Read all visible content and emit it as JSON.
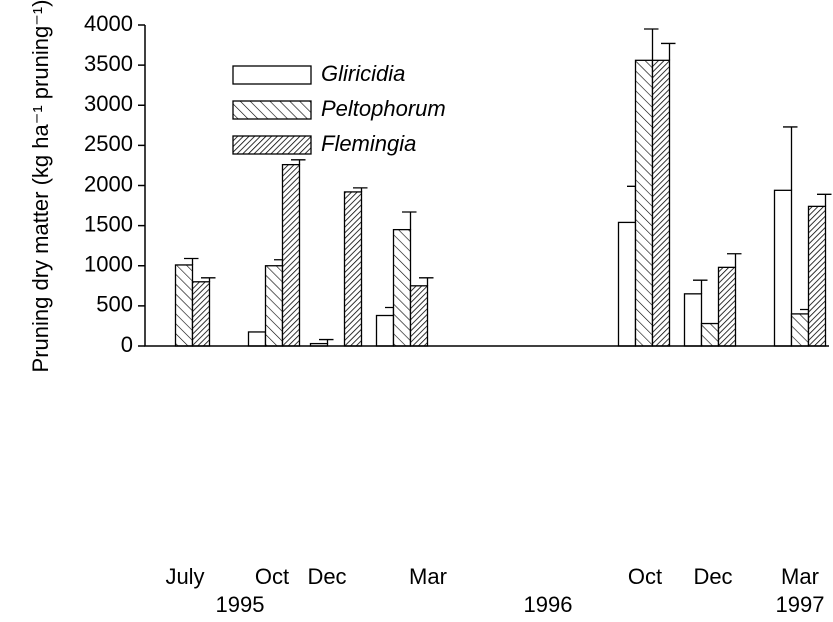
{
  "chart_data": {
    "type": "bar",
    "y_label": "Pruning dry matter (kg ha⁻¹ pruning⁻¹)",
    "categories": [
      "July",
      "Oct",
      "Dec",
      "Mar",
      "Oct",
      "Dec",
      "Mar"
    ],
    "year_labels": [
      "1995",
      "1996",
      "1997"
    ],
    "series": [
      {
        "name": "Gliricidia",
        "pattern": "plain",
        "values": [
          null,
          175,
          30,
          380,
          1540,
          650,
          1940
        ],
        "errors": [
          null,
          null,
          50,
          100,
          450,
          170,
          790
        ]
      },
      {
        "name": "Peltophorum",
        "pattern": "sparse-hatch",
        "values": [
          1010,
          1000,
          0,
          1450,
          3560,
          280,
          400
        ],
        "errors": [
          80,
          75,
          null,
          220,
          390,
          null,
          55
        ]
      },
      {
        "name": "Flemingia",
        "pattern": "dense-hatch",
        "values": [
          800,
          2260,
          1920,
          750,
          3560,
          980,
          1740
        ],
        "errors": [
          50,
          60,
          50,
          100,
          210,
          170,
          150
        ]
      }
    ],
    "ylim": [
      0,
      4000
    ],
    "yticks": [
      0,
      500,
      1000,
      1500,
      2000,
      2500,
      3000,
      3500,
      4000
    ],
    "legend": "upper left"
  }
}
